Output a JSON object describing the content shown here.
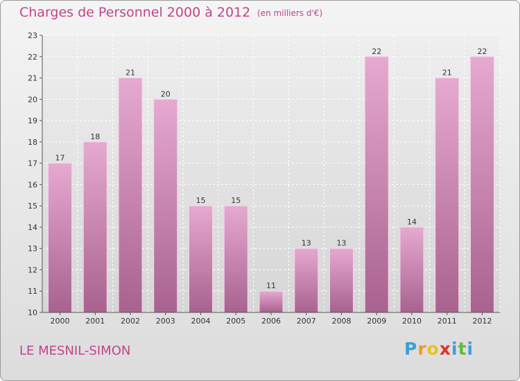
{
  "title": "Charges de Personnel 2000 à 2012",
  "subtitle": "(en milliers d'€)",
  "commune": "LE MESNIL-SIMON",
  "logo": {
    "letters": [
      "P",
      "r",
      "o",
      "x",
      "i",
      "t",
      "i"
    ],
    "colors": [
      "#3aa0d8",
      "#f29a1a",
      "#e8c31a",
      "#d8342c",
      "#3aa0d8",
      "#66b83a",
      "#3aa0d8"
    ]
  },
  "colors": {
    "accent": "#c0448a",
    "bar_top": "#e6a9d0",
    "bar_bottom": "#a8628f"
  },
  "chart_data": {
    "type": "bar",
    "categories": [
      "2000",
      "2001",
      "2002",
      "2003",
      "2004",
      "2005",
      "2006",
      "2007",
      "2008",
      "2009",
      "2010",
      "2011",
      "2012"
    ],
    "values": [
      17,
      18,
      21,
      20,
      15,
      15,
      11,
      13,
      13,
      22,
      14,
      21,
      22
    ],
    "ylim": [
      10,
      23
    ],
    "yticks": [
      10,
      11,
      12,
      13,
      14,
      15,
      16,
      17,
      18,
      19,
      20,
      21,
      22,
      23
    ],
    "grid": true
  }
}
